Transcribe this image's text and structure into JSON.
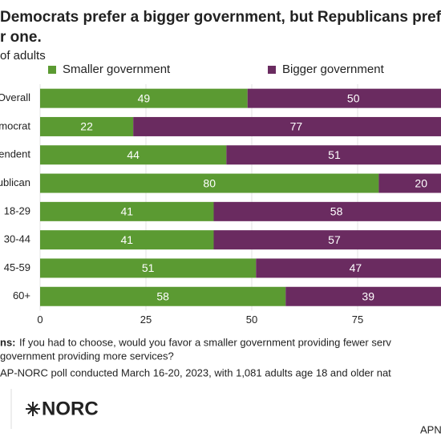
{
  "chart_data": {
    "type": "stacked-bar-horizontal",
    "title_lines": [
      "Democrats prefer a bigger government, but Republicans prefe",
      "r one."
    ],
    "subtitle": "of adults",
    "categories": [
      "Overall",
      "mocrat",
      "endent",
      "ublican",
      "18-29",
      "30-44",
      "45-59",
      "60+"
    ],
    "series": [
      {
        "name": "Smaller government",
        "color": "#5b9a32",
        "values": [
          49,
          22,
          44,
          80,
          41,
          41,
          51,
          58
        ]
      },
      {
        "name": "Bigger government",
        "color": "#6a2b60",
        "values": [
          50,
          77,
          51,
          20,
          58,
          57,
          47,
          39
        ]
      }
    ],
    "xlim": [
      0,
      100
    ],
    "xticks": [
      0,
      25,
      50,
      75
    ],
    "grid": true,
    "note_label": "ns:",
    "note_lines": [
      "If you had to choose, would you favor a smaller government providing fewer serv",
      "government providing more services?"
    ],
    "source": "AP-NORC poll conducted March 16-20, 2023, with 1,081 adults age 18 and older nat",
    "logo": "NORC",
    "corner_text": "APN"
  }
}
